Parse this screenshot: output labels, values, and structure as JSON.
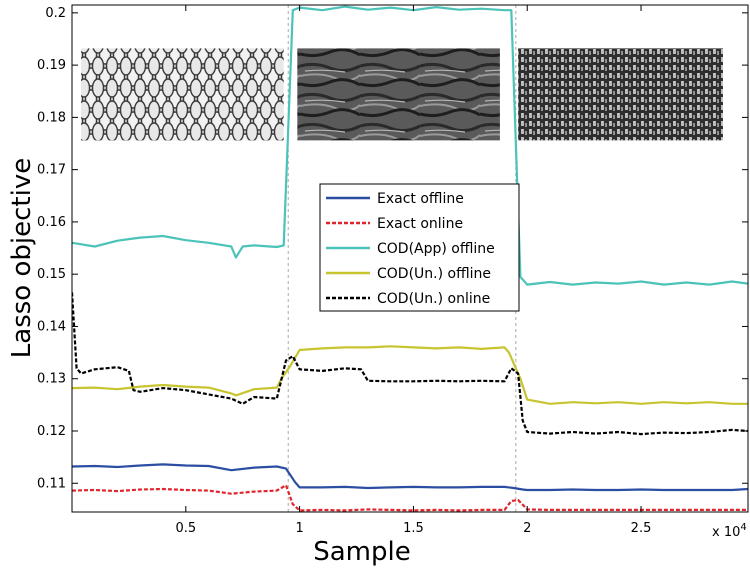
{
  "chart_data": {
    "type": "line",
    "title": "",
    "xlabel": "Sample",
    "ylabel": "Lasso objective",
    "x_multiplier_label": "x 10",
    "x_multiplier_exponent": "4",
    "xlim": [
      0.0,
      2.97
    ],
    "ylim": [
      0.1045,
      0.2015
    ],
    "xticks": [
      {
        "value": 0.5,
        "label": "0.5"
      },
      {
        "value": 1.0,
        "label": "1"
      },
      {
        "value": 1.5,
        "label": "1.5"
      },
      {
        "value": 2.0,
        "label": "2"
      },
      {
        "value": 2.5,
        "label": "2.5"
      }
    ],
    "yticks": [
      {
        "value": 0.11,
        "label": "0.11"
      },
      {
        "value": 0.12,
        "label": "0.12"
      },
      {
        "value": 0.13,
        "label": "0.13"
      },
      {
        "value": 0.14,
        "label": "0.14"
      },
      {
        "value": 0.15,
        "label": "0.15"
      },
      {
        "value": 0.16,
        "label": "0.16"
      },
      {
        "value": 0.17,
        "label": "0.17"
      },
      {
        "value": 0.18,
        "label": "0.18"
      },
      {
        "value": 0.19,
        "label": "0.19"
      },
      {
        "value": 0.2,
        "label": "0.2"
      }
    ],
    "vlines": [
      0.95,
      1.95
    ],
    "legend_position": "center",
    "texture_panels": [
      {
        "name": "texture-image-1",
        "x_range": [
          0.04,
          0.93
        ],
        "y_range": [
          0.1756,
          0.1932
        ],
        "style": "scales"
      },
      {
        "name": "texture-image-2",
        "x_range": [
          0.99,
          1.88
        ],
        "y_range": [
          0.1756,
          0.1932
        ],
        "style": "bark"
      },
      {
        "name": "texture-image-3",
        "x_range": [
          1.96,
          2.86
        ],
        "y_range": [
          0.1756,
          0.1932
        ],
        "style": "weave"
      }
    ],
    "series": [
      {
        "name": "Exact offline",
        "color": "#2b4ea2",
        "dash": "solid",
        "x": [
          0.0,
          0.1,
          0.2,
          0.3,
          0.4,
          0.5,
          0.6,
          0.7,
          0.8,
          0.9,
          0.94,
          0.98,
          1.0,
          1.1,
          1.2,
          1.3,
          1.4,
          1.5,
          1.6,
          1.7,
          1.8,
          1.9,
          1.94,
          1.98,
          2.0,
          2.1,
          2.2,
          2.3,
          2.4,
          2.5,
          2.6,
          2.7,
          2.8,
          2.9,
          2.97
        ],
        "y": [
          0.1132,
          0.1133,
          0.1131,
          0.1134,
          0.1136,
          0.1134,
          0.1133,
          0.1125,
          0.113,
          0.1132,
          0.1128,
          0.1102,
          0.1092,
          0.1092,
          0.1093,
          0.1091,
          0.1092,
          0.1093,
          0.1092,
          0.1092,
          0.1093,
          0.1093,
          0.1091,
          0.1088,
          0.1087,
          0.1087,
          0.1088,
          0.1087,
          0.1087,
          0.1088,
          0.1087,
          0.1087,
          0.1087,
          0.1087,
          0.1089
        ]
      },
      {
        "name": "Exact online",
        "color": "#e0262d",
        "dash": "dashed",
        "x": [
          0.0,
          0.1,
          0.2,
          0.3,
          0.4,
          0.5,
          0.6,
          0.7,
          0.8,
          0.9,
          0.94,
          0.97,
          1.0,
          1.1,
          1.2,
          1.3,
          1.4,
          1.5,
          1.6,
          1.7,
          1.8,
          1.9,
          1.93,
          1.96,
          2.0,
          2.1,
          2.2,
          2.3,
          2.4,
          2.5,
          2.6,
          2.7,
          2.8,
          2.9,
          2.97
        ],
        "y": [
          0.1086,
          0.1087,
          0.1085,
          0.1088,
          0.1089,
          0.1087,
          0.1086,
          0.108,
          0.1084,
          0.1086,
          0.1096,
          0.106,
          0.1048,
          0.1049,
          0.1048,
          0.105,
          0.1049,
          0.1048,
          0.1049,
          0.1048,
          0.1049,
          0.1049,
          0.1066,
          0.1068,
          0.105,
          0.1049,
          0.1049,
          0.1049,
          0.1049,
          0.1049,
          0.1049,
          0.1049,
          0.1049,
          0.1049,
          0.1049
        ]
      },
      {
        "name": "COD(App) offline",
        "color": "#4cc3b8",
        "dash": "solid",
        "x": [
          0.0,
          0.1,
          0.2,
          0.3,
          0.4,
          0.5,
          0.6,
          0.7,
          0.72,
          0.75,
          0.8,
          0.9,
          0.93,
          0.97,
          1.0,
          1.1,
          1.2,
          1.3,
          1.4,
          1.5,
          1.6,
          1.7,
          1.8,
          1.9,
          1.93,
          1.97,
          2.0,
          2.1,
          2.2,
          2.3,
          2.4,
          2.5,
          2.6,
          2.7,
          2.8,
          2.9,
          2.97
        ],
        "y": [
          0.156,
          0.1553,
          0.1564,
          0.157,
          0.1573,
          0.1565,
          0.156,
          0.1553,
          0.1532,
          0.1553,
          0.1555,
          0.1552,
          0.1555,
          0.2005,
          0.201,
          0.2005,
          0.2012,
          0.2006,
          0.201,
          0.2005,
          0.2011,
          0.2006,
          0.2008,
          0.2005,
          0.2005,
          0.1495,
          0.148,
          0.1485,
          0.148,
          0.1484,
          0.1482,
          0.1486,
          0.148,
          0.1484,
          0.148,
          0.1486,
          0.1482
        ]
      },
      {
        "name": "COD(Un.) offline",
        "color": "#c8c430",
        "dash": "solid",
        "x": [
          0.0,
          0.1,
          0.2,
          0.3,
          0.4,
          0.5,
          0.6,
          0.7,
          0.72,
          0.8,
          0.9,
          0.92,
          0.96,
          1.0,
          1.1,
          1.2,
          1.3,
          1.4,
          1.5,
          1.6,
          1.7,
          1.8,
          1.9,
          1.92,
          1.97,
          2.0,
          2.1,
          2.2,
          2.3,
          2.4,
          2.5,
          2.6,
          2.7,
          2.8,
          2.9,
          2.97
        ],
        "y": [
          0.1282,
          0.1283,
          0.128,
          0.1285,
          0.1288,
          0.1285,
          0.1283,
          0.1272,
          0.1268,
          0.128,
          0.1283,
          0.13,
          0.1325,
          0.1355,
          0.1358,
          0.136,
          0.136,
          0.1362,
          0.136,
          0.1358,
          0.136,
          0.1357,
          0.136,
          0.135,
          0.13,
          0.126,
          0.1252,
          0.1255,
          0.1253,
          0.1255,
          0.1252,
          0.1255,
          0.1253,
          0.1255,
          0.1252,
          0.1252
        ]
      },
      {
        "name": "COD(Un.) online",
        "color": "#000000",
        "dash": "dashed",
        "x": [
          0.0,
          0.02,
          0.04,
          0.1,
          0.2,
          0.25,
          0.27,
          0.3,
          0.4,
          0.5,
          0.6,
          0.7,
          0.75,
          0.8,
          0.9,
          0.94,
          0.97,
          1.0,
          1.1,
          1.2,
          1.27,
          1.3,
          1.4,
          1.5,
          1.6,
          1.7,
          1.8,
          1.9,
          1.93,
          1.96,
          1.98,
          2.0,
          2.1,
          2.2,
          2.3,
          2.4,
          2.5,
          2.6,
          2.7,
          2.8,
          2.9,
          2.97
        ],
        "y": [
          0.1465,
          0.132,
          0.131,
          0.1318,
          0.1322,
          0.1315,
          0.1278,
          0.1275,
          0.1282,
          0.1278,
          0.127,
          0.1262,
          0.1252,
          0.1265,
          0.1262,
          0.1335,
          0.1343,
          0.1318,
          0.1315,
          0.132,
          0.1318,
          0.1296,
          0.1295,
          0.1295,
          0.1296,
          0.1295,
          0.1296,
          0.1295,
          0.132,
          0.131,
          0.122,
          0.1198,
          0.1195,
          0.1198,
          0.1195,
          0.1198,
          0.1194,
          0.1197,
          0.1196,
          0.1198,
          0.1202,
          0.12
        ]
      }
    ]
  }
}
